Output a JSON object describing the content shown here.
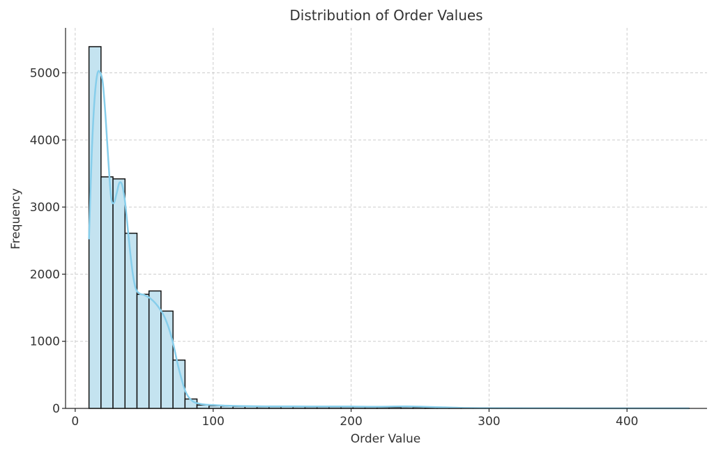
{
  "chart_data": {
    "type": "bar",
    "title": "Distribution of Order Values",
    "xlabel": "Order Value",
    "ylabel": "Frequency",
    "xlim": [
      -7,
      458
    ],
    "ylim": [
      0,
      5670
    ],
    "xticks": [
      0,
      100,
      200,
      300,
      400
    ],
    "yticks": [
      0,
      1000,
      2000,
      3000,
      4000,
      5000
    ],
    "grid": true,
    "colors": {
      "bar_fill": "#c4e3f0",
      "bar_edge": "#111111",
      "kde": "#87ceeb"
    },
    "bin_edges": [
      10,
      18.7,
      27.4,
      36.1,
      44.8,
      53.5,
      62.2,
      70.9,
      79.6,
      88.3,
      97,
      105.7,
      114.4,
      123.1,
      131.8,
      140.5,
      149.2,
      157.9,
      166.6,
      175.3,
      184,
      192.7,
      201.4,
      210.1,
      218.8,
      227.5,
      236.2,
      244.9,
      253.6,
      262.3,
      271,
      279.7,
      288.4,
      297.1,
      305.8,
      314.5,
      323.2,
      331.9,
      340.6,
      349.3,
      358,
      366.7,
      375.4,
      384.1,
      392.8,
      401.5,
      410.2,
      418.9,
      427.6,
      436.3,
      445
    ],
    "values": [
      5390,
      3450,
      3420,
      2610,
      1700,
      1750,
      1450,
      720,
      140,
      50,
      40,
      35,
      30,
      28,
      25,
      25,
      28,
      25,
      22,
      22,
      22,
      22,
      22,
      20,
      18,
      18,
      22,
      18,
      12,
      8,
      6,
      4,
      3,
      3,
      2,
      2,
      2,
      1,
      1,
      1,
      1,
      1,
      1,
      1,
      1,
      1,
      1,
      1,
      1,
      1
    ],
    "kde": {
      "x": [
        10,
        12,
        14,
        16,
        18,
        20,
        22,
        24,
        26,
        28,
        30,
        32,
        34,
        36,
        38,
        40,
        42,
        44,
        46,
        48,
        50,
        55,
        60,
        65,
        70,
        75,
        80,
        85,
        90,
        95,
        100,
        110,
        120,
        140,
        160,
        180,
        200,
        220,
        240,
        260,
        280,
        300,
        350,
        400,
        445
      ],
      "y": [
        2520,
        3800,
        4600,
        4980,
        5010,
        4850,
        4350,
        3700,
        3150,
        3060,
        3200,
        3360,
        3330,
        3100,
        2700,
        2300,
        1970,
        1780,
        1720,
        1700,
        1690,
        1630,
        1520,
        1350,
        1050,
        600,
        250,
        110,
        70,
        55,
        50,
        40,
        35,
        30,
        30,
        28,
        28,
        25,
        30,
        20,
        8,
        4,
        2,
        1,
        1
      ]
    }
  }
}
